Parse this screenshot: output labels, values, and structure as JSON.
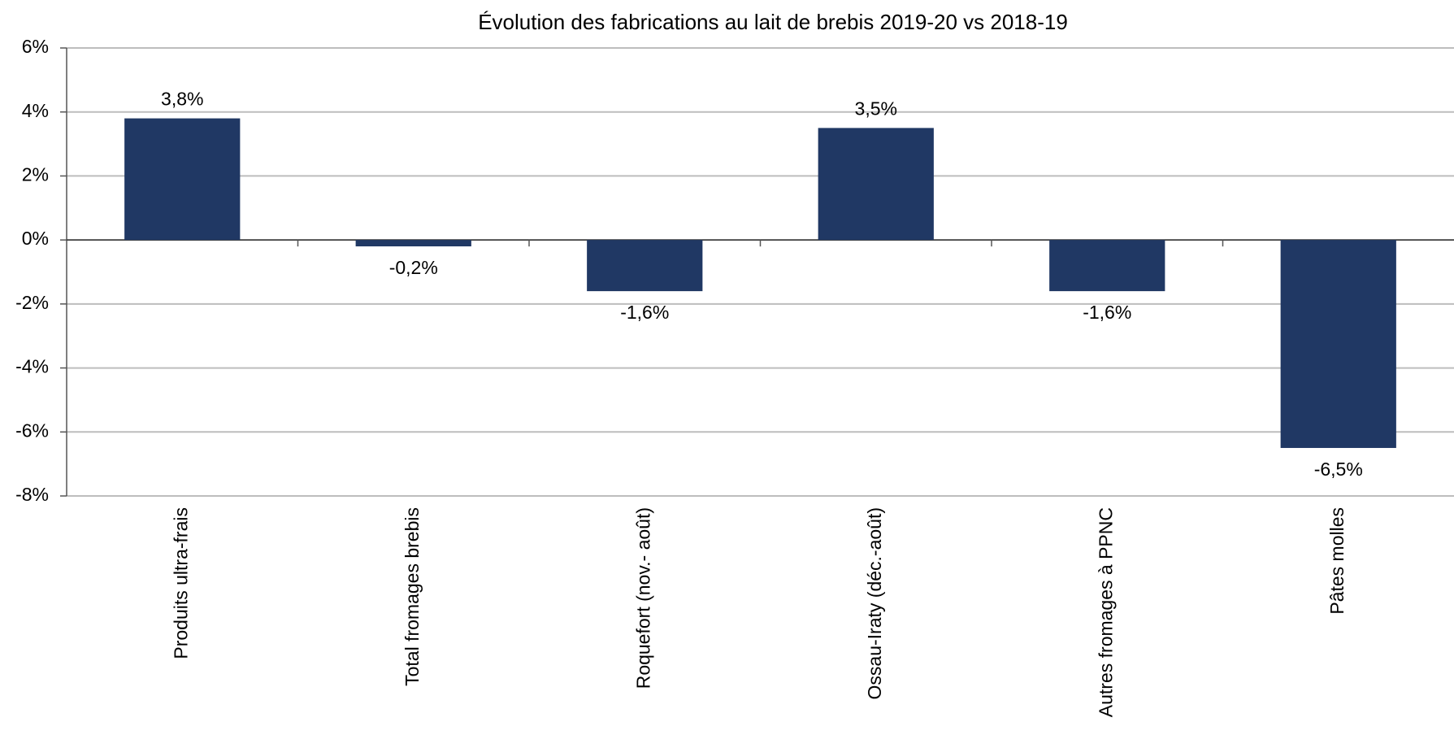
{
  "chart_data": {
    "type": "bar",
    "title": "Évolution des fabrications au lait de brebis 2019-20 vs 2018-19",
    "categories": [
      "Produits ultra-frais",
      "Total fromages brebis",
      "Roquefort (nov.- août)",
      "Ossau-Iraty (déc.-août)",
      "Autres fromages à PPNC",
      "Pâtes molles"
    ],
    "values": [
      3.8,
      -0.2,
      -1.6,
      3.5,
      -1.6,
      -6.5
    ],
    "value_labels": [
      "3,8%",
      "-0,2%",
      "-1,6%",
      "3,5%",
      "-1,6%",
      "-6,5%"
    ],
    "color": "#203864",
    "ylim": [
      -8,
      6
    ],
    "yticks": [
      {
        "value": -8,
        "label": "-8%"
      },
      {
        "value": -6,
        "label": "-6%"
      },
      {
        "value": -4,
        "label": "-4%"
      },
      {
        "value": -2,
        "label": "-2%"
      },
      {
        "value": 0,
        "label": "0%"
      },
      {
        "value": 2,
        "label": "2%"
      },
      {
        "value": 4,
        "label": "4%"
      },
      {
        "value": 6,
        "label": "6%"
      }
    ],
    "grid": true
  }
}
